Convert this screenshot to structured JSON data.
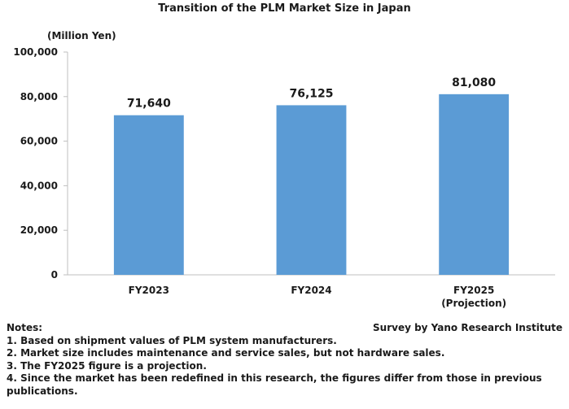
{
  "chart_data": {
    "type": "bar",
    "title": "Transition of the PLM Market Size in Japan",
    "unit_label": "(Million Yen)",
    "categories": [
      "FY2023",
      "FY2024",
      "FY2025\n(Projection)"
    ],
    "values": [
      71640,
      76125,
      81080
    ],
    "data_labels": [
      "71,640",
      "76,125",
      "81,080"
    ],
    "ylim": [
      0,
      100000
    ],
    "yticks": [
      0,
      20000,
      40000,
      60000,
      80000,
      100000
    ],
    "ytick_labels": [
      "0",
      "20,000",
      "40,000",
      "60,000",
      "80,000",
      "100,000"
    ],
    "bar_color": "#5b9bd5",
    "grid": false
  },
  "notes": {
    "heading": "Notes:",
    "items": [
      "1. Based on shipment values of PLM system manufacturers.",
      "2. Market size includes maintenance and service sales, but not hardware sales.",
      "3. The FY2025 figure is a projection.",
      "4. Since the market has been redefined in this research, the figures differ from those in previous publications."
    ]
  },
  "source": "Survey by Yano Research Institute"
}
